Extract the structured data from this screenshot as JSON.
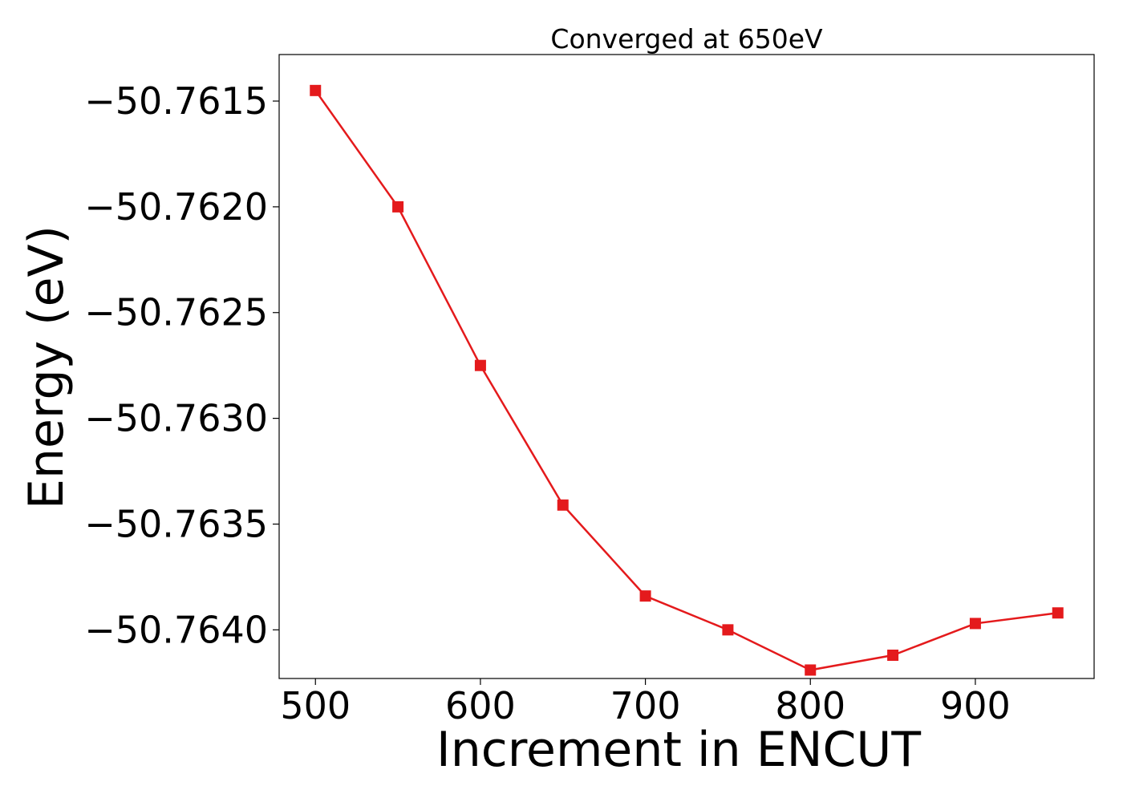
{
  "chart_data": {
    "type": "line",
    "title": "Converged at 650eV",
    "xlabel": "Increment in ENCUT",
    "ylabel": "Energy (eV)",
    "xlim": [
      478,
      972
    ],
    "ylim": [
      -50.76423,
      -50.76128
    ],
    "xticks": [
      500,
      600,
      700,
      800,
      900
    ],
    "xtick_labels": [
      "500",
      "600",
      "700",
      "800",
      "900"
    ],
    "yticks": [
      -50.7615,
      -50.762,
      -50.7625,
      -50.763,
      -50.7635,
      -50.764
    ],
    "ytick_labels": [
      "−50.7615",
      "−50.7620",
      "−50.7625",
      "−50.7630",
      "−50.7635",
      "−50.7640"
    ],
    "grid": false,
    "series": [
      {
        "color": "#e41a1c",
        "marker": "square",
        "x": [
          500,
          550,
          600,
          650,
          700,
          750,
          800,
          850,
          900,
          950
        ],
        "y": [
          -50.76145,
          -50.762,
          -50.76275,
          -50.76341,
          -50.76384,
          -50.764,
          -50.76419,
          -50.76412,
          -50.76397,
          -50.76392
        ]
      }
    ]
  }
}
